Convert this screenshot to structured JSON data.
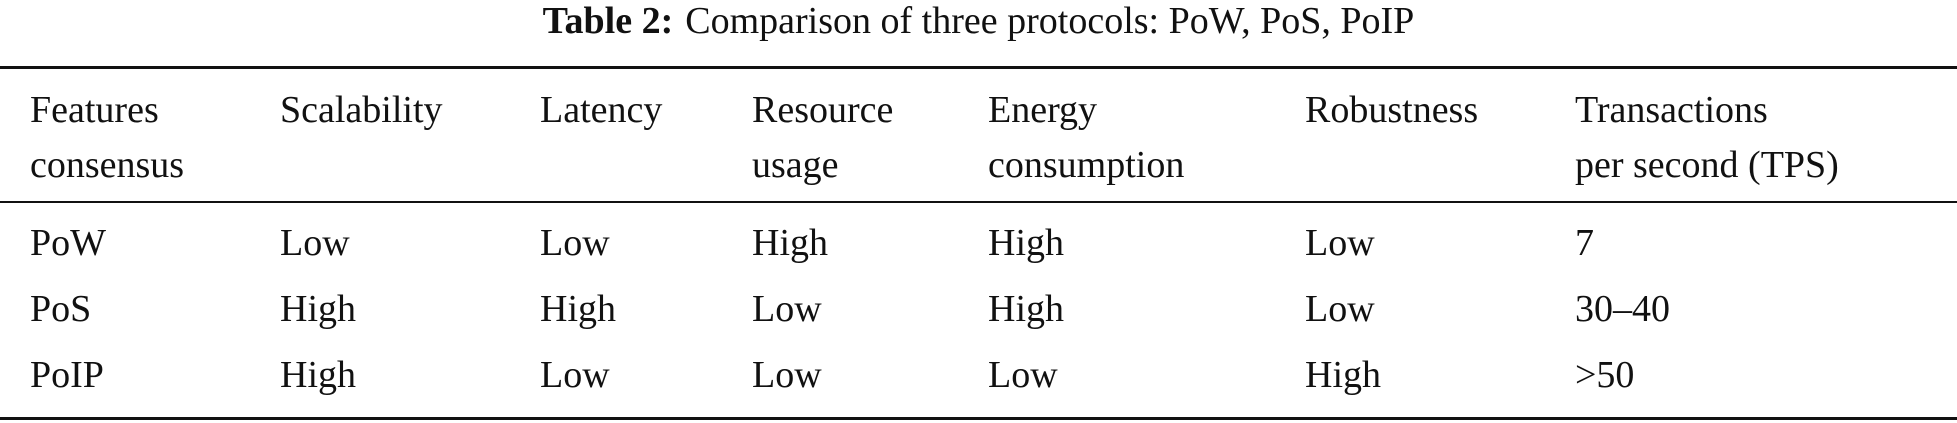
{
  "caption": {
    "label": "Table 2:",
    "text": "Comparison of three protocols: PoW, PoS, PoIP"
  },
  "table": {
    "header": [
      [
        "Features",
        "consensus"
      ],
      [
        "Scalability"
      ],
      [
        "Latency"
      ],
      [
        "Resource",
        "usage"
      ],
      [
        "Energy",
        "consumption"
      ],
      [
        "Robustness"
      ],
      [
        "Transactions",
        "per second (TPS)"
      ]
    ],
    "rows": [
      [
        "PoW",
        "Low",
        "Low",
        "High",
        "High",
        "Low",
        "7"
      ],
      [
        "PoS",
        "High",
        "High",
        "Low",
        "High",
        "Low",
        "30–40"
      ],
      [
        "PoIP",
        "High",
        "Low",
        "Low",
        "Low",
        "High",
        ">50"
      ]
    ]
  }
}
